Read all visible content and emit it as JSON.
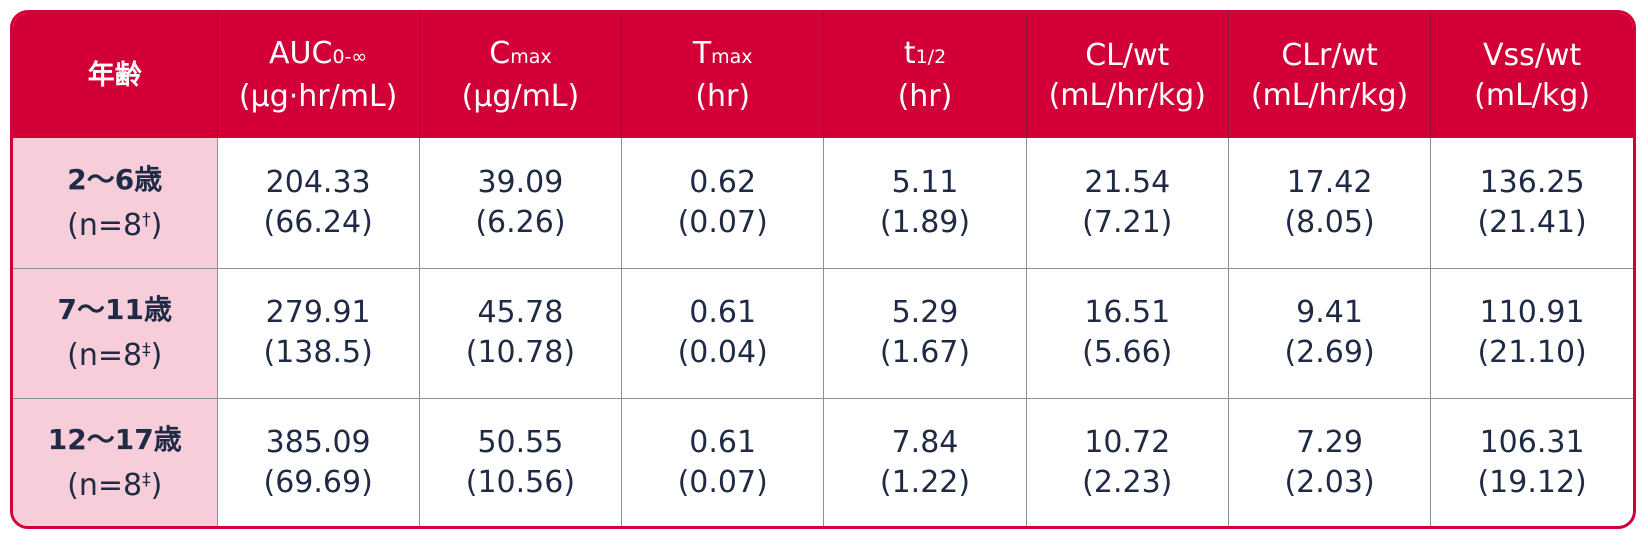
{
  "table": {
    "corner_header": "年齢",
    "columns": [
      {
        "name": "AUC",
        "sub": "0-∞",
        "unit": "(μg·hr/mL)"
      },
      {
        "name": "C",
        "sub": "max",
        "unit": "(μg/mL)"
      },
      {
        "name": "T",
        "sub": "max",
        "unit": "(hr)"
      },
      {
        "name": "t",
        "sub": "1/2",
        "unit": "(hr)"
      },
      {
        "name": "CL/wt",
        "sub": "",
        "unit": "(mL/hr/kg)"
      },
      {
        "name": "CLr/wt",
        "sub": "",
        "unit": "(mL/hr/kg)"
      },
      {
        "name": "Vss/wt",
        "sub": "",
        "unit": "(mL/kg)"
      }
    ],
    "rows": [
      {
        "age": "2～6歳",
        "n": "(n=8",
        "mark": "†",
        "close": ")",
        "cells": [
          {
            "mean": "204.33",
            "sd": "(66.24)"
          },
          {
            "mean": "39.09",
            "sd": "(6.26)"
          },
          {
            "mean": "0.62",
            "sd": "(0.07)"
          },
          {
            "mean": "5.11",
            "sd": "(1.89)"
          },
          {
            "mean": "21.54",
            "sd": "(7.21)"
          },
          {
            "mean": "17.42",
            "sd": "(8.05)"
          },
          {
            "mean": "136.25",
            "sd": "(21.41)"
          }
        ]
      },
      {
        "age": "7～11歳",
        "n": "(n=8",
        "mark": "‡",
        "close": ")",
        "cells": [
          {
            "mean": "279.91",
            "sd": "(138.5)"
          },
          {
            "mean": "45.78",
            "sd": "(10.78)"
          },
          {
            "mean": "0.61",
            "sd": "(0.04)"
          },
          {
            "mean": "5.29",
            "sd": "(1.67)"
          },
          {
            "mean": "16.51",
            "sd": "(5.66)"
          },
          {
            "mean": "9.41",
            "sd": "(2.69)"
          },
          {
            "mean": "110.91",
            "sd": "(21.10)"
          }
        ]
      },
      {
        "age": "12～17歳",
        "n": "(n=8",
        "mark": "‡",
        "close": ")",
        "cells": [
          {
            "mean": "385.09",
            "sd": "(69.69)"
          },
          {
            "mean": "50.55",
            "sd": "(10.56)"
          },
          {
            "mean": "0.61",
            "sd": "(0.07)"
          },
          {
            "mean": "7.84",
            "sd": "(1.22)"
          },
          {
            "mean": "10.72",
            "sd": "(2.23)"
          },
          {
            "mean": "7.29",
            "sd": "(2.03)"
          },
          {
            "mean": "106.31",
            "sd": "(19.12)"
          }
        ]
      }
    ]
  },
  "colors": {
    "header_bg": "#d30038",
    "row_header_bg": "#f6cdd8",
    "text": "#1f2a44"
  }
}
